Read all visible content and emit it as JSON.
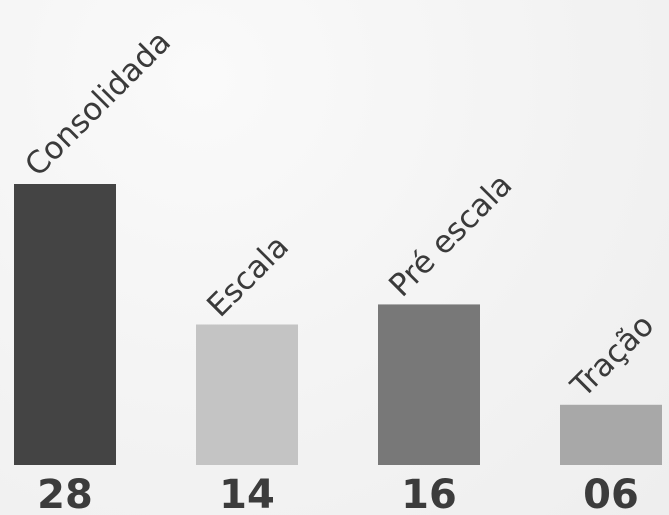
{
  "chart_data": {
    "type": "bar",
    "title": "",
    "xlabel": "",
    "ylabel": "",
    "categories": [
      "Consolidada",
      "Escala",
      "Pré escala",
      "Tração"
    ],
    "values": [
      28,
      14,
      16,
      6
    ],
    "value_labels": [
      "28",
      "14",
      "16",
      "06"
    ],
    "bar_colors": [
      "#444444",
      "#c4c4c4",
      "#787878",
      "#a8a8a8"
    ],
    "ylim": [
      0,
      28
    ],
    "grid": false,
    "legend": "none",
    "category_label_rotation": -45
  }
}
